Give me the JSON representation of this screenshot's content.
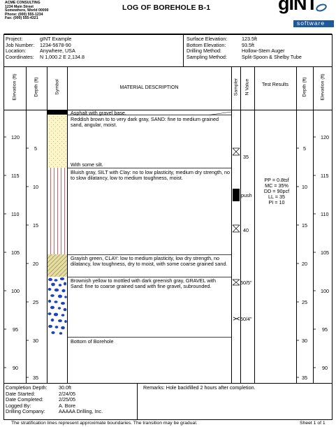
{
  "header": {
    "company_lines": [
      "ACME CONSULTING",
      "1234 Main Street",
      "Somewhere, World 00000",
      "Phone: (000) 555-1234",
      "Fax: (000) 555-4321"
    ],
    "title": "LOG OF BOREHOLE B-1",
    "logo_text": "gINT",
    "logo_sub": "software"
  },
  "project_info": {
    "labels": [
      "Project:",
      "Job Number:",
      "Location:",
      "Coordinates:"
    ],
    "values": [
      "gINT Example",
      "1234-5678-90",
      "Anywhere, USA",
      "N 1,000.2  E 2,134.8"
    ],
    "right_labels": [
      "Surface Elevation:",
      "Bottom Elevation:",
      "Drilling Method:",
      "Sampling Method:"
    ],
    "right_values": [
      "123.5ft",
      "93.5ft",
      "Hollow-Stem Auger",
      "Split-Spoon & Shelby Tube"
    ]
  },
  "columns": {
    "elevation_left": "Elevation (ft)",
    "depth_left": "Depth (ft)",
    "symbol": "Symbol",
    "material": "MATERIAL DESCRIPTION",
    "sampler": "Sampler",
    "n_value": "N Value",
    "test_results": "Test Results",
    "depth_right": "Depth (ft)",
    "elevation_right": "Elevation (ft)"
  },
  "depth_ticks": [
    "5",
    "10",
    "15",
    "20",
    "25",
    "30",
    "35"
  ],
  "elevation_ticks": [
    "120",
    "115",
    "110",
    "105",
    "100",
    "95",
    "90"
  ],
  "layers": [
    {
      "name": "asphalt",
      "text": "Asphalt with gravel base."
    },
    {
      "name": "sand",
      "text": "Reddish brown to to very dark gray, SAND: fine to medium grained sand, angular, moist."
    },
    {
      "name": "sand-silt",
      "text": "With some silt."
    },
    {
      "name": "silt",
      "text": "Bluish gray, SILT with Clay: no to low plasticity, medium dry strength, no to slow dilatancy, low to medium toughness, moist."
    },
    {
      "name": "clay",
      "text": "Grayish green, CLAY: low to medium plasticity, low dry strength, no dilatancy, low toughness, dry to moist, with some coarse grained sand."
    },
    {
      "name": "gravel",
      "text": "Brownish yellow to mottled with dark greenish gray, GRAVEL with Sand: fine to coarse grained sand with fine gravel, subrounded."
    },
    {
      "name": "bottom",
      "text": "Bottom of Borehole"
    }
  ],
  "n_values": [
    "35",
    "push",
    "40",
    "50/5\"",
    "50/4\""
  ],
  "test_results": [
    "PP = 0.8tsf",
    "MC = 35%",
    "DD = 90pcf",
    "LL = 35",
    "PI = 10"
  ],
  "footer": {
    "labels": [
      "Completion Depth:",
      "Date Started:",
      "Date Completed:",
      "Logged By:",
      "Drilling Company:"
    ],
    "values": [
      "30.0ft",
      "2/24/05",
      "2/25/05",
      "A. Bore",
      "AAAAA Drilling, Inc."
    ],
    "remarks": "Remarks:  Hole backfilled 2 hours after completion.",
    "note": "The stratification lines represent approximate boundaries.  The transition may be gradual.",
    "sheet": "Sheet 1  of  1"
  },
  "colors": {
    "sand_fill": "#fbf5c8",
    "silt_line": "#d33",
    "clay_fill": "#e4dca0",
    "gravel_dot": "#1a3ed6",
    "logo_blue": "#1c5aa0"
  }
}
